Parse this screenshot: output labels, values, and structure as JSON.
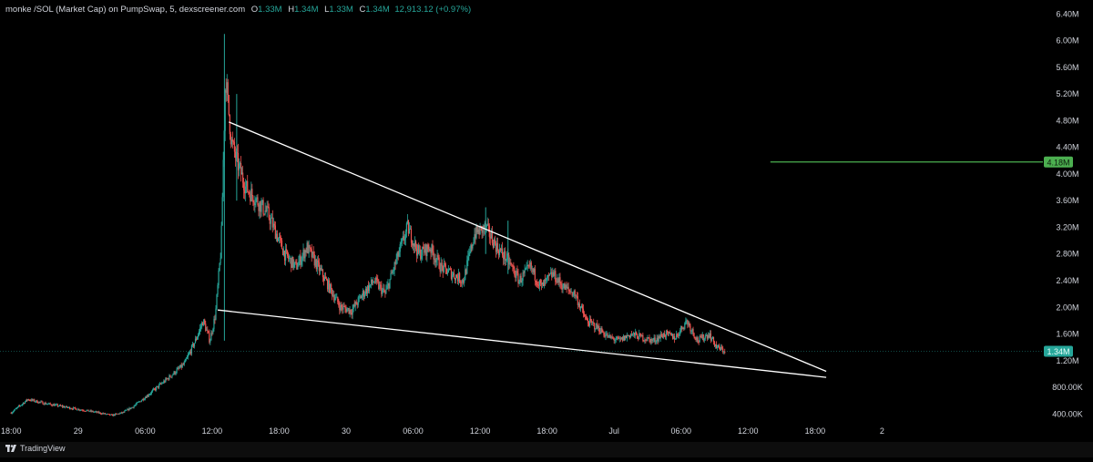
{
  "legend": {
    "title": "monke /SOL (Market Cap) on PumpSwap, 5, dexscreener.com",
    "o_label": "O",
    "o_value": "1.33M",
    "h_label": "H",
    "h_value": "1.34M",
    "l_label": "L",
    "l_value": "1.33M",
    "c_label": "C",
    "c_value": "1.34M",
    "change": "12,913.12 (+0.97%)"
  },
  "branding": "TradingView",
  "colors": {
    "background": "#000000",
    "up": "#26a69a",
    "down": "#ef5350",
    "trendline": "#ffffff",
    "target_line": "#4caf50",
    "axis_text": "#d1d4dc"
  },
  "chart_data": {
    "type": "candlestick",
    "title": "monke /SOL (Market Cap) on PumpSwap, 5, dexscreener.com",
    "interval": "5",
    "y_scale": "linear",
    "ylim": [
      350000,
      6500000
    ],
    "y_ticks": [
      {
        "value": 400000,
        "label": "400.00K"
      },
      {
        "value": 800000,
        "label": "800.00K"
      },
      {
        "value": 1200000,
        "label": "1.20M"
      },
      {
        "value": 1600000,
        "label": "1.60M"
      },
      {
        "value": 2000000,
        "label": "2.00M"
      },
      {
        "value": 2400000,
        "label": "2.40M"
      },
      {
        "value": 2800000,
        "label": "2.80M"
      },
      {
        "value": 3200000,
        "label": "3.20M"
      },
      {
        "value": 3600000,
        "label": "3.60M"
      },
      {
        "value": 4000000,
        "label": "4.00M"
      },
      {
        "value": 4400000,
        "label": "4.40M"
      },
      {
        "value": 4800000,
        "label": "4.80M"
      },
      {
        "value": 5200000,
        "label": "5.20M"
      },
      {
        "value": 5600000,
        "label": "5.60M"
      },
      {
        "value": 6000000,
        "label": "6.00M"
      },
      {
        "value": 6400000,
        "label": "6.40M"
      }
    ],
    "x_unit": "hours from 28 Jun 18:00",
    "xlim": [
      -1,
      92
    ],
    "x_ticks": [
      {
        "value": 0,
        "label": "18:00"
      },
      {
        "value": 6,
        "label": "29"
      },
      {
        "value": 12,
        "label": "06:00"
      },
      {
        "value": 18,
        "label": "12:00"
      },
      {
        "value": 24,
        "label": "18:00"
      },
      {
        "value": 30,
        "label": "30"
      },
      {
        "value": 36,
        "label": "06:00"
      },
      {
        "value": 42,
        "label": "12:00"
      },
      {
        "value": 48,
        "label": "18:00"
      },
      {
        "value": 54,
        "label": "Jul"
      },
      {
        "value": 60,
        "label": "06:00"
      },
      {
        "value": 66,
        "label": "12:00"
      },
      {
        "value": 72,
        "label": "18:00"
      },
      {
        "value": 78,
        "label": "2"
      }
    ],
    "price_path": [
      [
        0,
        420000
      ],
      [
        1.5,
        620000
      ],
      [
        3,
        560000
      ],
      [
        5,
        500000
      ],
      [
        7.5,
        430000
      ],
      [
        9,
        380000
      ],
      [
        10,
        420000
      ],
      [
        11,
        520000
      ],
      [
        12.5,
        720000
      ],
      [
        14,
        930000
      ],
      [
        15.5,
        1150000
      ],
      [
        16.5,
        1500000
      ],
      [
        17.2,
        1800000
      ],
      [
        17.8,
        1500000
      ],
      [
        18.3,
        1900000
      ],
      [
        18.8,
        2900000
      ],
      [
        19.2,
        5500000
      ],
      [
        19.7,
        4500000
      ],
      [
        20.2,
        4200000
      ],
      [
        21,
        3800000
      ],
      [
        22,
        3600000
      ],
      [
        23,
        3400000
      ],
      [
        24.5,
        2800000
      ],
      [
        25.5,
        2600000
      ],
      [
        26.5,
        2900000
      ],
      [
        27.5,
        2600000
      ],
      [
        28.5,
        2300000
      ],
      [
        29.5,
        2000000
      ],
      [
        30.5,
        1950000
      ],
      [
        31.5,
        2200000
      ],
      [
        32.5,
        2400000
      ],
      [
        33.5,
        2200000
      ],
      [
        34.5,
        2700000
      ],
      [
        35.5,
        3200000
      ],
      [
        36.5,
        2800000
      ],
      [
        37.5,
        2900000
      ],
      [
        38.5,
        2600000
      ],
      [
        39.5,
        2500000
      ],
      [
        40.5,
        2400000
      ],
      [
        41.5,
        3100000
      ],
      [
        42.5,
        3200000
      ],
      [
        43.5,
        2900000
      ],
      [
        44.5,
        2700000
      ],
      [
        45.5,
        2400000
      ],
      [
        46.5,
        2600000
      ],
      [
        47.5,
        2300000
      ],
      [
        48.5,
        2500000
      ],
      [
        49.5,
        2300000
      ],
      [
        50.5,
        2200000
      ],
      [
        51.5,
        1800000
      ],
      [
        52.5,
        1700000
      ],
      [
        53.5,
        1550000
      ],
      [
        54.5,
        1500000
      ],
      [
        55.5,
        1600000
      ],
      [
        56.5,
        1550000
      ],
      [
        57.5,
        1500000
      ],
      [
        58.5,
        1600000
      ],
      [
        59.5,
        1550000
      ],
      [
        60.5,
        1800000
      ],
      [
        61.5,
        1500000
      ],
      [
        62.5,
        1600000
      ],
      [
        63.2,
        1400000
      ],
      [
        64,
        1340000
      ]
    ],
    "spikes": [
      {
        "x": 19.1,
        "high": 6100000,
        "low": 1500000
      },
      {
        "x": 20.2,
        "high": 5200000,
        "low": 3600000
      },
      {
        "x": 42.5,
        "high": 3500000,
        "low": 2800000
      },
      {
        "x": 44.5,
        "high": 3300000,
        "low": 2500000
      }
    ],
    "trendlines": [
      {
        "name": "upper",
        "from": [
          19.5,
          4780000
        ],
        "to": [
          73,
          1040000
        ]
      },
      {
        "name": "lower",
        "from": [
          18.5,
          1960000
        ],
        "to": [
          73,
          950000
        ]
      }
    ],
    "target_line": {
      "value": 4180000,
      "label": "4.18M",
      "x_from": 68
    },
    "last_price": {
      "value": 1340000,
      "label": "1.34M"
    }
  }
}
